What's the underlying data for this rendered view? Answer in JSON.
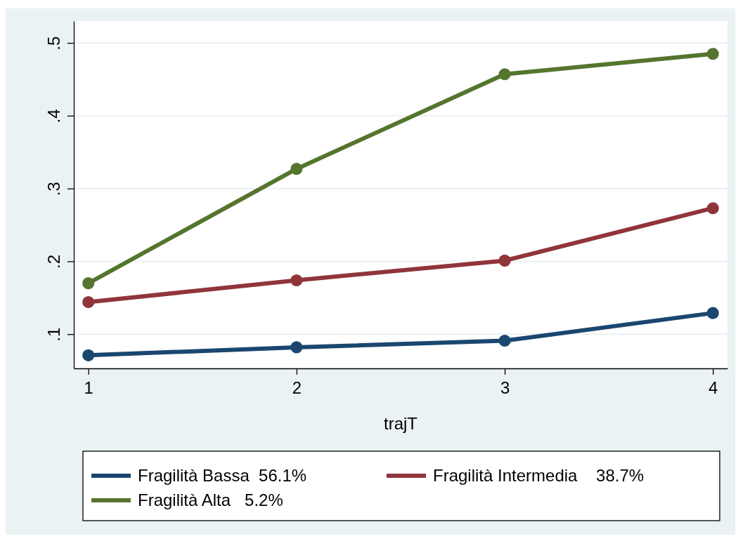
{
  "chart_data": {
    "type": "line",
    "xlabel": "trajT",
    "x": [
      1,
      2,
      3,
      4
    ],
    "xlim": [
      0.93,
      4.07
    ],
    "xticks": [
      1,
      2,
      3,
      4
    ],
    "ylim": [
      0.053,
      0.53
    ],
    "yticks": [
      {
        "value": 0.1,
        "label": ".1"
      },
      {
        "value": 0.2,
        "label": ".2"
      },
      {
        "value": 0.3,
        "label": ".3"
      },
      {
        "value": 0.4,
        "label": ".4"
      },
      {
        "value": 0.5,
        "label": ".5"
      }
    ],
    "grid": "y",
    "legend": "bottom",
    "marker": "circle",
    "line_style": "solid",
    "series": [
      {
        "name": "Fragilità Bassa  56.1%",
        "color": "#1a476f",
        "values": [
          0.071,
          0.082,
          0.091,
          0.129
        ]
      },
      {
        "name": "Fragilità Intermedia    38.7%",
        "color": "#90353b",
        "values": [
          0.144,
          0.174,
          0.201,
          0.273
        ]
      },
      {
        "name": "Fragilità Alta   5.2%",
        "color": "#55752f",
        "values": [
          0.17,
          0.327,
          0.457,
          0.485
        ]
      }
    ]
  }
}
